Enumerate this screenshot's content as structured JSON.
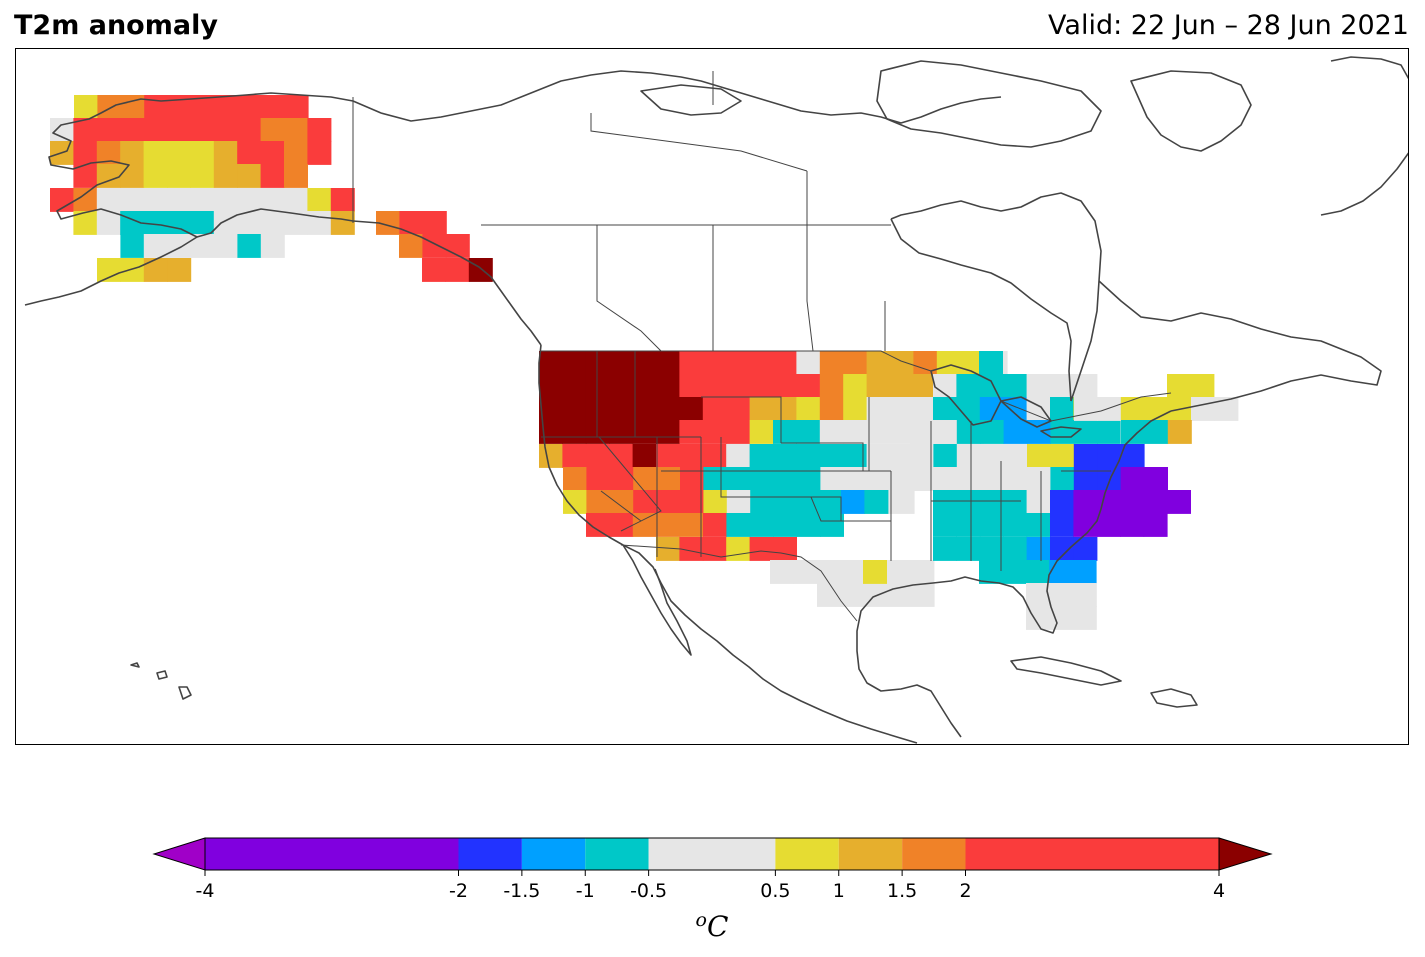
{
  "header": {
    "title": "T2m anomaly",
    "valid": "Valid: 22 Jun – 28 Jun 2021"
  },
  "colorbar": {
    "unit_base": "o",
    "unit_main": "C",
    "bounds": [
      -4,
      -2,
      -1.5,
      -1,
      -0.5,
      0.5,
      1,
      1.5,
      2,
      4
    ],
    "tick_labels": [
      "-4",
      "-2",
      "-1.5",
      "-1",
      "-0.5",
      "0.5",
      "1",
      "1.5",
      "2",
      "4"
    ],
    "colors": [
      "#8000df",
      "#2233ff",
      "#00a0ff",
      "#00c8c8",
      "#e6e6e6",
      "#e6dc32",
      "#e6af2d",
      "#f08228",
      "#fa3c3c"
    ],
    "under_color": "#a000c8",
    "over_color": "#8b0000",
    "extend": "both"
  },
  "map": {
    "projection": "plate carree",
    "region": "North America",
    "coastline_color": "#444444",
    "border_color": "#444444"
  }
}
